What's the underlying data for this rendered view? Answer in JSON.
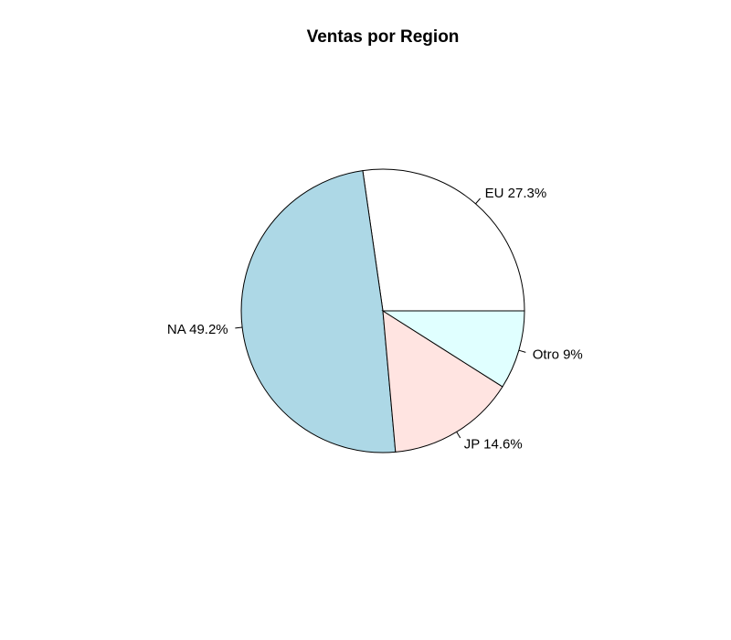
{
  "chart_data": {
    "type": "pie",
    "title": "Ventas por Region",
    "slices": [
      {
        "name": "EU",
        "value": 27.3,
        "label": "EU 27.3%",
        "color": "#ffffff"
      },
      {
        "name": "NA",
        "value": 49.2,
        "label": "NA 49.2%",
        "color": "#add8e6"
      },
      {
        "name": "JP",
        "value": 14.6,
        "label": "JP 14.6%",
        "color": "#ffe4e1"
      },
      {
        "name": "Otro",
        "value": 9.0,
        "label": "Otro 9%",
        "color": "#e0ffff"
      }
    ],
    "start_angle_deg": 0,
    "direction": "counterclockwise",
    "border_color": "#000000"
  }
}
